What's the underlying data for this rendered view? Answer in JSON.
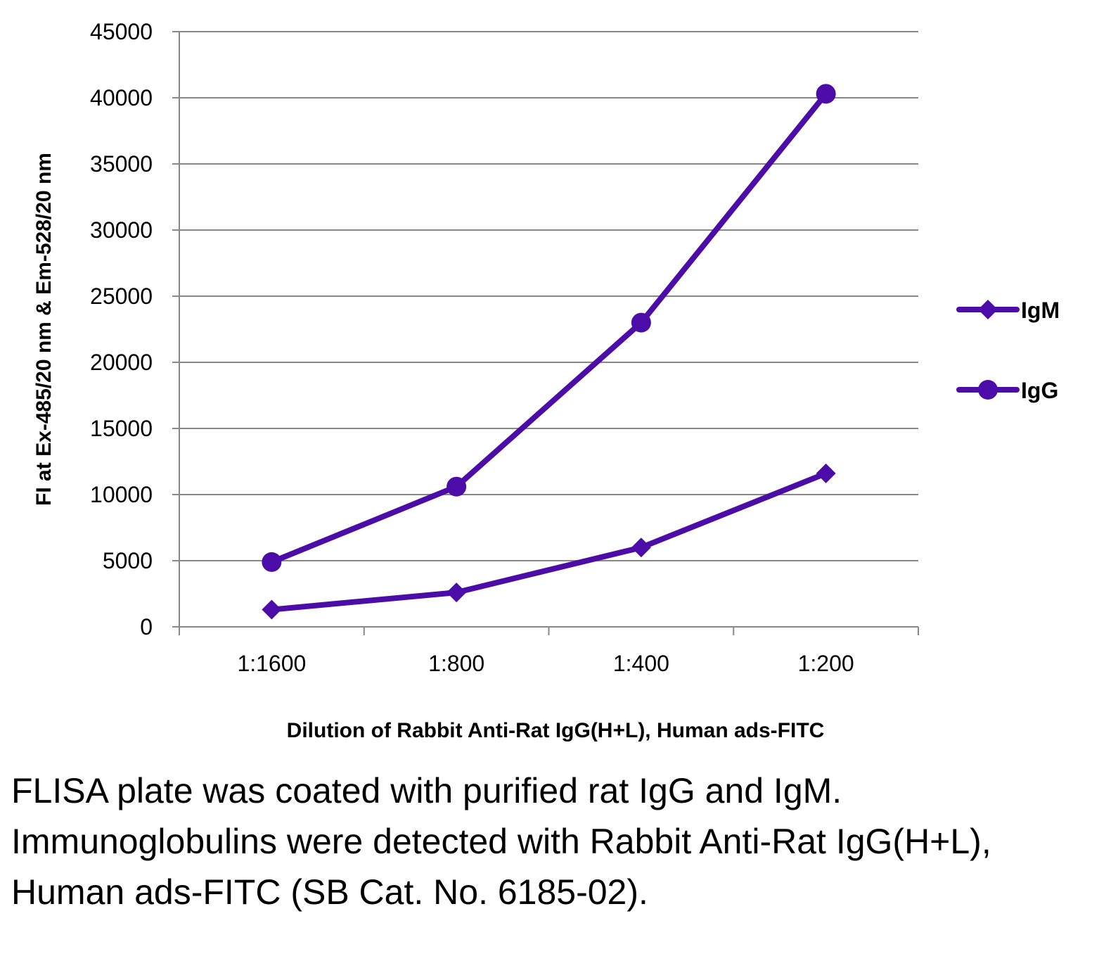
{
  "chart_data": {
    "type": "line",
    "title": "",
    "categories": [
      "1:1600",
      "1:800",
      "1:400",
      "1:200"
    ],
    "series": [
      {
        "name": "IgM",
        "marker": "diamond",
        "values": [
          1300,
          2600,
          6000,
          11600
        ]
      },
      {
        "name": "IgG",
        "marker": "circle",
        "values": [
          4900,
          10600,
          23000,
          40300
        ]
      }
    ],
    "xlabel": "Dilution of Rabbit Anti-Rat IgG(H+L), Human ads-FITC",
    "ylabel": "FI at Ex-485/20 nm & Em-528/20 nm",
    "ylim": [
      0,
      45000
    ],
    "yticks": [
      "0",
      "5000",
      "10000",
      "15000",
      "20000",
      "25000",
      "30000",
      "35000",
      "40000",
      "45000"
    ],
    "grid": true,
    "legend_position": "right",
    "colors": {
      "line": "#4B0CA8",
      "grid": "#888888",
      "axis": "#888888"
    }
  },
  "caption": "FLISA plate was coated with purified rat IgG and IgM.  Immunoglobulins were detected with Rabbit Anti-Rat IgG(H+L), Human ads-FITC (SB Cat. No. 6185-02)."
}
